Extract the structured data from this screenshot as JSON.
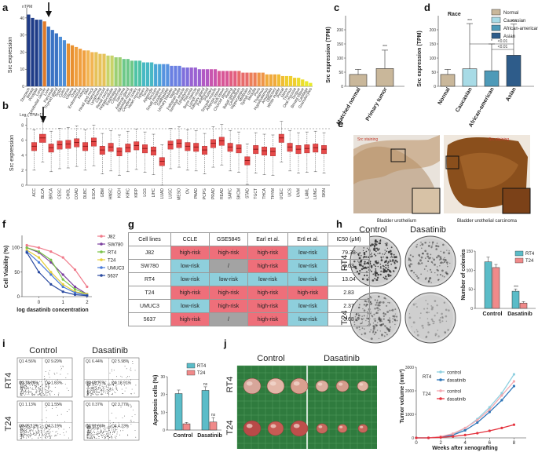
{
  "panels": {
    "a": "a",
    "b": "b",
    "c": "c",
    "d": "d",
    "e": "e",
    "f": "f",
    "g": "g",
    "h": "h",
    "i": "i",
    "j": "j"
  },
  "colors": {
    "red": "#e64a4a",
    "teal": "#5bbcc8",
    "pink": "#f08a8a",
    "blue": "#2f76b8",
    "grey": "#9a9a9a"
  },
  "chart_data": [
    {
      "id": "a",
      "type": "bar",
      "unit_label": "nTPM",
      "ylabel": "Src expression",
      "categories": [
        "Stomach",
        "Breast",
        "Prostate",
        "Lung",
        "Urothelial cancer",
        "Liver",
        "Pancreas",
        "Thyroid gland",
        "Testis",
        "Colon",
        "Cervix",
        "Glioma",
        "Ovary",
        "Endometrium",
        "Kidney",
        "Skin",
        "Head and neck",
        "Melanoma",
        "Lymphoma",
        "Carcinoid",
        "Renal cancer",
        "Hepatocellular",
        "Esophagus",
        "Colorectal",
        "Sarcoma",
        "Adrenal gland",
        "Skeletal muscle",
        "Cerebral cortex",
        "Heart muscle",
        "Spleen",
        "Tonsil",
        "Appendix",
        "Rectum",
        "Small intestine",
        "Duodenum",
        "Gallbladder",
        "Urinary bladder",
        "Vagina",
        "Fallopian tube",
        "Seminal vesicle",
        "Epididymis",
        "Placenta",
        "Bone marrow",
        "Lymph node",
        "Salivary gland",
        "Parathyroid",
        "Pituitary",
        "Smooth muscle",
        "Adipose tissue",
        "Soft tissue",
        "Choroid plexus",
        "Retina",
        "Basal ganglia",
        "Cerebellum",
        "Hippocampus",
        "Midbrain",
        "Spinal cord",
        "Medulla",
        "Pons",
        "Thalamus",
        "Hypothalamus",
        "Amygdala",
        "Olfactory",
        "White matter",
        "Pineal",
        "Nerve",
        "Thymus",
        "Oral mucosa",
        "Tongue",
        "Breast tissue",
        "Cartilage",
        "Granulocytes"
      ],
      "values": [
        42,
        40,
        39,
        39,
        38,
        35,
        33,
        31,
        29,
        27,
        25,
        24,
        23,
        22,
        21,
        21,
        20,
        20,
        19,
        19,
        18,
        18,
        17,
        17,
        16,
        16,
        15,
        15,
        15,
        14,
        14,
        14,
        13,
        13,
        13,
        13,
        12,
        12,
        12,
        11,
        11,
        11,
        11,
        10,
        10,
        10,
        10,
        10,
        9,
        9,
        9,
        9,
        9,
        9,
        8,
        8,
        8,
        8,
        8,
        8,
        7,
        7,
        7,
        7,
        6,
        6,
        6,
        5,
        5,
        4,
        3,
        2
      ],
      "highlight_index": 4,
      "ylim": [
        0,
        45
      ],
      "yticks": [
        "0",
        "10",
        "20",
        "30",
        "40"
      ]
    },
    {
      "id": "b",
      "type": "box",
      "ylabel": "Src expression",
      "unit_label": "Log₂(TPM+1)",
      "categories": [
        "ACC",
        "BLCA",
        "BRCA",
        "CESC",
        "CHOL",
        "COAD",
        "DLBC",
        "ESCA",
        "GBM",
        "HNSC",
        "KICH",
        "KIRC",
        "KIRP",
        "LGG",
        "LIHC",
        "LUAD",
        "LUSC",
        "MESO",
        "OV",
        "PAAD",
        "PCPG",
        "PRAD",
        "READ",
        "SARC",
        "SKCM",
        "STAD",
        "TGCT",
        "THCA",
        "THYM",
        "UCEC",
        "UCS",
        "UVM",
        "LAML",
        "LUNG",
        "SKIN"
      ],
      "medians": [
        5.2,
        6.3,
        5.0,
        5.4,
        5.5,
        5.7,
        5.2,
        5.8,
        4.7,
        5.1,
        4.5,
        5.0,
        5.3,
        4.9,
        4.6,
        3.2,
        5.4,
        5.6,
        5.2,
        5.1,
        4.7,
        5.6,
        5.9,
        5.1,
        4.9,
        3.3,
        4.8,
        4.6,
        4.5,
        6.3,
        5.1,
        4.8,
        4.9,
        5.0,
        4.8
      ],
      "highlight_index": 1,
      "yticks": [
        "0",
        "2",
        "4",
        "6",
        "8"
      ],
      "ylim": [
        0,
        9
      ]
    },
    {
      "id": "c",
      "type": "bar",
      "ylabel": "Src expression (TPM)",
      "categories": [
        "Matched normal",
        "Primary tumor"
      ],
      "values": [
        42,
        63
      ],
      "errors": [
        18,
        65
      ],
      "yticks": [
        "0",
        "50",
        "100",
        "150",
        "200"
      ],
      "ylim": [
        0,
        250
      ],
      "significance": "***"
    },
    {
      "id": "d",
      "type": "bar",
      "title": "Race",
      "ylabel": "Src expression (TPM)",
      "categories": [
        "Normal",
        "Caucasian",
        "African-american",
        "Asian"
      ],
      "values": [
        42,
        62,
        55,
        110
      ],
      "errors": [
        18,
        160,
        95,
        110
      ],
      "yticks": [
        "0",
        "50",
        "100",
        "150",
        "200"
      ],
      "ylim": [
        0,
        250
      ],
      "significance": [
        "***",
        "*",
        "***"
      ],
      "comparisons": [
        "<0.01",
        "<0.01"
      ],
      "legend": [
        "Normal",
        "Caucasian",
        "African-american",
        "Asian"
      ]
    },
    {
      "id": "f",
      "type": "line",
      "ylabel": "Cell Viability (%)",
      "xlabel": "log dasatinib concentration",
      "series": [
        {
          "name": "J82",
          "marker": "circle",
          "x": [
            -0.5,
            0,
            0.5,
            1,
            1.5,
            2
          ],
          "y": [
            105,
            100,
            92,
            80,
            55,
            20
          ]
        },
        {
          "name": "SW780",
          "marker": "square",
          "x": [
            -0.5,
            0,
            0.5,
            1,
            1.5,
            2
          ],
          "y": [
            100,
            90,
            70,
            45,
            20,
            5
          ]
        },
        {
          "name": "RT4",
          "marker": "triangle-up",
          "x": [
            -0.5,
            0,
            0.5,
            1,
            1.5,
            2
          ],
          "y": [
            100,
            92,
            75,
            35,
            15,
            5
          ]
        },
        {
          "name": "T24",
          "marker": "triangle-down",
          "x": [
            -0.5,
            0,
            0.5,
            1,
            1.5,
            2
          ],
          "y": [
            95,
            80,
            50,
            25,
            10,
            5
          ]
        },
        {
          "name": "UMUC3",
          "marker": "diamond",
          "x": [
            -0.5,
            0,
            0.5,
            1,
            1.5,
            2
          ],
          "y": [
            92,
            70,
            45,
            20,
            8,
            3
          ]
        },
        {
          "name": "5637",
          "marker": "cross",
          "x": [
            -0.5,
            0,
            0.5,
            1,
            1.5,
            2
          ],
          "y": [
            90,
            50,
            25,
            10,
            4,
            2
          ]
        }
      ],
      "xticks": [
        "0",
        "1",
        "2"
      ],
      "yticks": [
        "0",
        "50",
        "100"
      ],
      "ylim": [
        0,
        125
      ]
    },
    {
      "id": "h",
      "type": "bar",
      "ylabel": "Number of colonies",
      "categories": [
        "Control",
        "Dasatinib"
      ],
      "series": [
        {
          "name": "RT4",
          "values": [
            122,
            45
          ],
          "errors": [
            12,
            6
          ]
        },
        {
          "name": "T24",
          "values": [
            107,
            14
          ],
          "errors": [
            8,
            4
          ]
        }
      ],
      "yticks": [
        "0",
        "50",
        "100",
        "150"
      ],
      "ylim": [
        0,
        150
      ],
      "significance": "***"
    },
    {
      "id": "i",
      "type": "bar",
      "ylabel": "Apoptosis cells (%)",
      "categories": [
        "Control",
        "Dasatinib"
      ],
      "series": [
        {
          "name": "RT4",
          "values": [
            20.5,
            22.3
          ],
          "errors": [
            2,
            2
          ]
        },
        {
          "name": "T24",
          "values": [
            3.5,
            4.5
          ],
          "errors": [
            0.8,
            2.5
          ]
        }
      ],
      "yticks": [
        "0",
        "10",
        "20",
        "30"
      ],
      "ylim": [
        0,
        30
      ],
      "significance": [
        "ns",
        "ns"
      ]
    },
    {
      "id": "j",
      "type": "line",
      "ylabel": "Tumor volume (mm³)",
      "xlabel": "Weeks after xenografting",
      "series": [
        {
          "name": "RT4 control",
          "x": [
            0,
            1,
            2,
            3,
            4,
            5,
            6,
            7,
            8
          ],
          "y": [
            0,
            0,
            50,
            150,
            400,
            800,
            1300,
            1900,
            2700
          ]
        },
        {
          "name": "RT4 dasatinib",
          "x": [
            0,
            1,
            2,
            3,
            4,
            5,
            6,
            7,
            8
          ],
          "y": [
            0,
            0,
            40,
            120,
            320,
            650,
            1100,
            1600,
            2200
          ]
        },
        {
          "name": "T24 control",
          "x": [
            0,
            1,
            2,
            3,
            4,
            5,
            6,
            7,
            8
          ],
          "y": [
            0,
            0,
            60,
            180,
            420,
            750,
            1200,
            1800,
            2400
          ]
        },
        {
          "name": "T24 dasatinib",
          "x": [
            0,
            1,
            2,
            3,
            4,
            5,
            6,
            7,
            8
          ],
          "y": [
            0,
            0,
            20,
            60,
            120,
            200,
            300,
            420,
            560
          ]
        }
      ],
      "xticks": [
        "0",
        "2",
        "4",
        "6",
        "8"
      ],
      "yticks": [
        "0",
        "1000",
        "2000",
        "3000"
      ],
      "ylim": [
        0,
        3000
      ],
      "legend_groups": [
        "RT4",
        "T24"
      ],
      "legend_items": [
        "control",
        "dasatinib",
        "control",
        "dasatinib"
      ]
    }
  ],
  "panel_e": {
    "caption_left": "Bladder urothelium",
    "caption_right": "Bladder urothelial carcinoma",
    "stain_left": "Src staining",
    "stain_right": "Src staining"
  },
  "panel_g": {
    "headers": [
      "Cell lines",
      "CCLE",
      "GSE5845",
      "Earl et al.",
      "Ertl et al.",
      "IC50 (μM)"
    ],
    "rows": [
      [
        "J82",
        "high-risk",
        "high-risk",
        "high-risk",
        "low-risk",
        "79.38"
      ],
      [
        "SW780",
        "low-risk",
        "/",
        "high-risk",
        "low-risk",
        "9.63"
      ],
      [
        "RT4",
        "low-risk",
        "low-risk",
        "low-risk",
        "low-risk",
        "13.04"
      ],
      [
        "T24",
        "high-risk",
        "high-risk",
        "high-risk",
        "high-risk",
        "2.83"
      ],
      [
        "UMUC3",
        "low-risk",
        "high-risk",
        "high-risk",
        "low-risk",
        "2.37"
      ],
      [
        "5637",
        "high-risk",
        "/",
        "high-risk",
        "low-risk",
        "0.68"
      ]
    ]
  },
  "panel_h": {
    "col_labels": [
      "Control",
      "Dasatinib"
    ],
    "row_labels": [
      "RT4",
      "T24"
    ],
    "legend": [
      "RT4",
      "T24"
    ],
    "xcats": [
      "Control",
      "Dasatinib"
    ],
    "sig": "***"
  },
  "panel_i": {
    "col_labels": [
      "Control",
      "Dasatinib"
    ],
    "row_labels": [
      "RT4",
      "T24"
    ],
    "legend": [
      "RT4",
      "T24"
    ],
    "xcats": [
      "Control",
      "Dasatinib"
    ],
    "sig": [
      "ns",
      "ns"
    ],
    "quadrants": [
      [
        "Q1 4.56%",
        "Q2 9.29%",
        "Q3 78.26%",
        "Q4 1.83%"
      ],
      [
        "Q1 6.44%",
        "Q2 5.98%",
        "Q3 68.77%",
        "Q4 18.91%"
      ],
      [
        "Q1 1.13%",
        "Q2 1.55%",
        "Q3 95.13%",
        "Q4 2.19%"
      ],
      [
        "Q1 0.37%",
        "Q2 3.77%",
        "Q3 91.63%",
        "Q4 4.23%"
      ]
    ]
  },
  "panel_j": {
    "col_labels": [
      "Control",
      "Dasatinib"
    ],
    "row_labels": [
      "RT4",
      "T24"
    ]
  }
}
